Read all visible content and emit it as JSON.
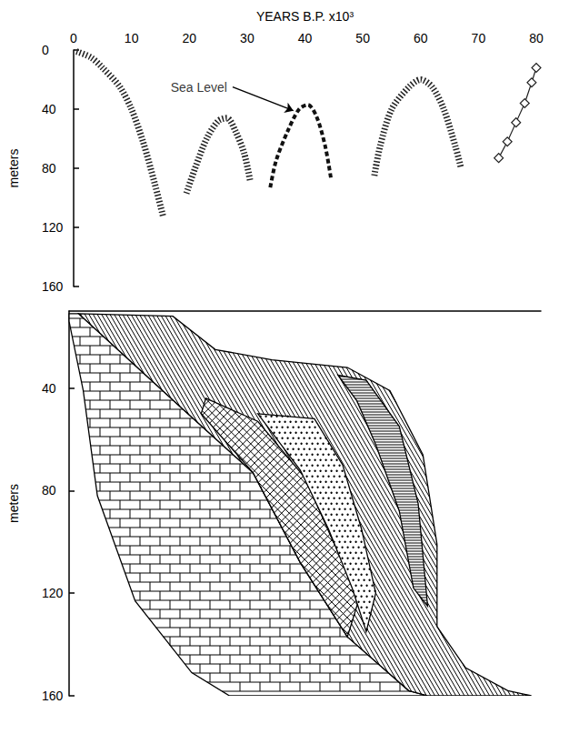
{
  "chart_data": [
    {
      "type": "line",
      "xlabel": "YEARS B.P. x10³",
      "ylabel": "meters",
      "xlim": [
        0,
        80
      ],
      "xticks": [
        0,
        10,
        20,
        30,
        40,
        50,
        60,
        70,
        80
      ],
      "ylim": [
        0,
        160
      ],
      "yticks": [
        0,
        40,
        80,
        120,
        160
      ],
      "grid": false,
      "series": [
        {
          "x": [
            0.5,
            3,
            5,
            8,
            10,
            12,
            14,
            15.5
          ],
          "values": [
            1,
            5,
            12,
            25,
            40,
            62,
            90,
            113
          ],
          "color": "#222222",
          "line_style": "hatched",
          "marker": "none"
        },
        {
          "x": [
            19.5,
            21,
            23,
            25,
            26.5,
            28,
            29.5,
            30.5
          ],
          "values": [
            97,
            80,
            60,
            48,
            46,
            55,
            70,
            88
          ],
          "color": "#222222",
          "line_style": "hatched",
          "marker": "none"
        },
        {
          "x": [
            34,
            35,
            37,
            39,
            40.5,
            42,
            43.5,
            44.5
          ],
          "values": [
            93,
            75,
            55,
            40,
            37,
            45,
            65,
            87
          ],
          "color": "#111111",
          "line_style": "dashed",
          "marker": "none"
        },
        {
          "x": [
            52,
            53,
            55,
            58,
            60,
            62,
            64,
            66,
            67
          ],
          "values": [
            85,
            65,
            40,
            25,
            20,
            25,
            40,
            65,
            80
          ],
          "color": "#222222",
          "line_style": "hatched",
          "marker": "none"
        },
        {
          "x": [
            73.5,
            75,
            76.5,
            78,
            79.2,
            80
          ],
          "values": [
            73,
            62,
            49,
            36,
            22,
            12
          ],
          "color": "#222222",
          "line_style": "solid",
          "marker": "diamond"
        }
      ],
      "annotations": [
        {
          "text": "Sea Level",
          "x": 27.5,
          "y": 25,
          "arrow_to": [
            38,
            41
          ]
        }
      ]
    },
    {
      "type": "cross_section",
      "ylabel": "meters",
      "xlim": [
        0,
        100
      ],
      "ylim": [
        10,
        160
      ],
      "yticks": [
        40,
        80,
        120,
        160
      ],
      "tick_labels": "y",
      "grid": false,
      "layers": [
        {
          "points": [
            [
              0,
              11
            ],
            [
              2,
              11
            ],
            [
              24,
              48
            ],
            [
              39,
              73
            ],
            [
              49,
              108
            ],
            [
              59,
              137
            ],
            [
              72,
              158
            ],
            [
              76,
              160
            ],
            [
              34,
              160
            ],
            [
              26,
              151
            ],
            [
              14,
              123
            ],
            [
              6,
              82
            ],
            [
              3,
              41
            ],
            [
              0,
              14
            ]
          ]
        },
        {
          "points": [
            [
              2,
              11
            ],
            [
              22,
              12
            ],
            [
              31,
              25
            ],
            [
              43,
              29
            ],
            [
              59,
              32
            ],
            [
              68,
              41
            ],
            [
              75,
              66
            ],
            [
              78,
              101
            ],
            [
              78,
              133
            ],
            [
              84,
              149
            ],
            [
              93,
              158
            ],
            [
              98,
              160
            ],
            [
              76,
              160
            ],
            [
              72,
              158
            ],
            [
              59,
              137
            ],
            [
              49,
              108
            ],
            [
              39,
              73
            ],
            [
              24,
              48
            ]
          ]
        },
        {
          "points": [
            [
              29,
              44
            ],
            [
              40,
              53
            ],
            [
              50,
              75
            ],
            [
              56,
              100
            ],
            [
              62,
              119
            ],
            [
              59,
              137
            ],
            [
              49,
              108
            ],
            [
              39,
              73
            ],
            [
              28,
              50
            ]
          ]
        },
        {
          "points": [
            [
              40,
              50
            ],
            [
              52,
              52
            ],
            [
              58,
              70
            ],
            [
              62,
              95
            ],
            [
              65,
              120
            ],
            [
              63,
              135
            ],
            [
              60,
              118
            ],
            [
              55,
              95
            ],
            [
              49,
              72
            ]
          ]
        },
        {
          "points": [
            [
              57,
              35
            ],
            [
              63,
              37
            ],
            [
              70,
              55
            ],
            [
              74,
              85
            ],
            [
              76,
              125
            ],
            [
              73,
              118
            ],
            [
              70,
              88
            ],
            [
              65,
              62
            ],
            [
              61,
              45
            ]
          ]
        }
      ]
    }
  ]
}
